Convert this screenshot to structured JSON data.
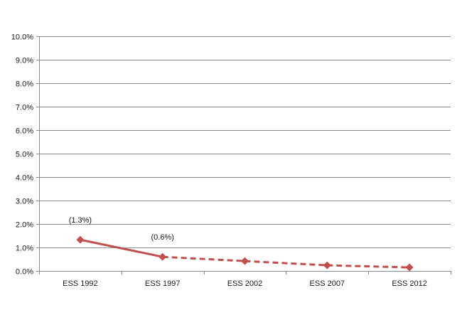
{
  "chart_data": {
    "type": "line",
    "categories": [
      "ESS 1992",
      "ESS 1997",
      "ESS 2002",
      "ESS 2007",
      "ESS 2012"
    ],
    "series": [
      {
        "values": [
          1.33,
          0.6,
          0.42,
          0.24,
          0.15
        ],
        "color": "#c0504d",
        "line_style": [
          "solid",
          "dashed",
          "dashed",
          "dashed"
        ],
        "marker": "diamond"
      }
    ],
    "data_labels": [
      {
        "index": 0,
        "text": "(1.3%)"
      },
      {
        "index": 1,
        "text": "(0.6%)"
      }
    ],
    "ylim": [
      0,
      10
    ],
    "yticks": [
      "0.0%",
      "1.0%",
      "2.0%",
      "3.0%",
      "4.0%",
      "5.0%",
      "6.0%",
      "7.0%",
      "8.0%",
      "9.0%",
      "10.0%"
    ],
    "ytick_values": [
      0,
      1,
      2,
      3,
      4,
      5,
      6,
      7,
      8,
      9,
      10
    ],
    "grid": true,
    "grid_color": "#8c8c8c",
    "axis_color": "#8c8c8c",
    "title": "",
    "xlabel": "",
    "ylabel": "",
    "legend": "none"
  }
}
